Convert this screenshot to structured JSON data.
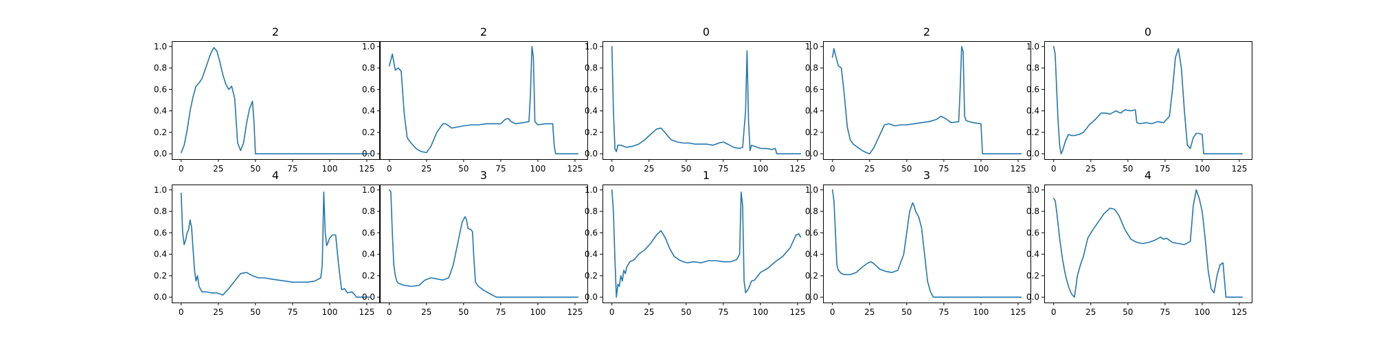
{
  "figure": {
    "background": "#ffffff",
    "line_color": "#1f77b4"
  },
  "chart_data": [
    {
      "type": "line",
      "title": "2",
      "xlim": [
        0,
        127
      ],
      "ylim": [
        0,
        1
      ],
      "xticks": [
        "0",
        "25",
        "50",
        "75",
        "100",
        "125"
      ],
      "yticks": [
        "0.0",
        "0.2",
        "0.4",
        "0.6",
        "0.8",
        "1.0"
      ],
      "x": [
        0,
        2,
        4,
        6,
        8,
        10,
        12,
        14,
        16,
        18,
        20,
        22,
        24,
        26,
        28,
        30,
        32,
        34,
        36,
        38,
        40,
        42,
        44,
        46,
        48,
        49,
        50,
        127
      ],
      "y": [
        0.01,
        0.08,
        0.22,
        0.4,
        0.53,
        0.63,
        0.66,
        0.7,
        0.78,
        0.86,
        0.94,
        0.99,
        0.96,
        0.86,
        0.74,
        0.65,
        0.6,
        0.63,
        0.52,
        0.1,
        0.03,
        0.1,
        0.28,
        0.42,
        0.49,
        0.3,
        0.0,
        0.0
      ]
    },
    {
      "type": "line",
      "title": "2",
      "xlim": [
        0,
        127
      ],
      "ylim": [
        0,
        1
      ],
      "xticks": [
        "0",
        "25",
        "50",
        "75",
        "100",
        "125"
      ],
      "yticks": [
        "0.0",
        "0.2",
        "0.4",
        "0.6",
        "0.8",
        "1.0"
      ],
      "x": [
        0,
        2,
        4,
        6,
        8,
        10,
        12,
        14,
        16,
        18,
        20,
        22,
        25,
        28,
        32,
        36,
        38,
        42,
        46,
        50,
        55,
        60,
        65,
        70,
        75,
        78,
        80,
        82,
        85,
        90,
        94,
        95,
        96,
        97,
        98,
        100,
        105,
        110,
        111,
        112,
        120,
        127
      ],
      "y": [
        0.82,
        0.93,
        0.78,
        0.8,
        0.77,
        0.38,
        0.15,
        0.11,
        0.08,
        0.05,
        0.03,
        0.02,
        0.01,
        0.07,
        0.2,
        0.28,
        0.28,
        0.24,
        0.25,
        0.26,
        0.27,
        0.27,
        0.28,
        0.28,
        0.28,
        0.32,
        0.33,
        0.3,
        0.28,
        0.29,
        0.3,
        0.55,
        1.0,
        0.9,
        0.3,
        0.27,
        0.28,
        0.28,
        0.08,
        0.0,
        0.0,
        0.0
      ]
    },
    {
      "type": "line",
      "title": "0",
      "xlim": [
        0,
        127
      ],
      "ylim": [
        0,
        1
      ],
      "xticks": [
        "0",
        "25",
        "50",
        "75",
        "100",
        "125"
      ],
      "yticks": [
        "0.0",
        "0.2",
        "0.4",
        "0.6",
        "0.8",
        "1.0"
      ],
      "x": [
        0,
        1,
        2,
        3,
        4,
        6,
        8,
        10,
        14,
        18,
        22,
        26,
        30,
        33,
        35,
        38,
        40,
        44,
        48,
        52,
        56,
        60,
        64,
        68,
        72,
        75,
        78,
        82,
        86,
        88,
        90,
        91,
        92,
        93,
        94,
        96,
        100,
        104,
        108,
        110,
        111,
        112,
        120,
        127
      ],
      "y": [
        1.0,
        0.4,
        0.05,
        0.02,
        0.08,
        0.08,
        0.07,
        0.06,
        0.07,
        0.09,
        0.13,
        0.18,
        0.23,
        0.24,
        0.21,
        0.16,
        0.13,
        0.11,
        0.1,
        0.1,
        0.09,
        0.09,
        0.09,
        0.08,
        0.1,
        0.11,
        0.09,
        0.06,
        0.05,
        0.06,
        0.4,
        0.96,
        0.3,
        0.03,
        0.08,
        0.07,
        0.05,
        0.05,
        0.04,
        0.05,
        0.0,
        0.0,
        0.0,
        0.0
      ]
    },
    {
      "type": "line",
      "title": "2",
      "xlim": [
        0,
        127
      ],
      "ylim": [
        0,
        1
      ],
      "xticks": [
        "0",
        "25",
        "50",
        "75",
        "100",
        "125"
      ],
      "yticks": [
        "0.0",
        "0.2",
        "0.4",
        "0.6",
        "0.8",
        "1.0"
      ],
      "x": [
        0,
        1,
        2,
        4,
        6,
        8,
        10,
        12,
        14,
        17,
        20,
        23,
        25,
        28,
        32,
        35,
        38,
        42,
        46,
        50,
        55,
        60,
        65,
        70,
        73,
        76,
        80,
        85,
        86,
        87,
        88,
        89,
        90,
        92,
        95,
        100,
        101,
        110,
        120,
        127
      ],
      "y": [
        0.9,
        0.98,
        0.92,
        0.82,
        0.8,
        0.55,
        0.25,
        0.13,
        0.09,
        0.06,
        0.03,
        0.01,
        0.0,
        0.06,
        0.18,
        0.27,
        0.28,
        0.26,
        0.27,
        0.27,
        0.28,
        0.29,
        0.3,
        0.32,
        0.35,
        0.33,
        0.29,
        0.3,
        0.6,
        1.0,
        0.95,
        0.35,
        0.31,
        0.3,
        0.29,
        0.28,
        0.0,
        0.0,
        0.0,
        0.0
      ]
    },
    {
      "type": "line",
      "title": "0",
      "xlim": [
        0,
        127
      ],
      "ylim": [
        0,
        1
      ],
      "xticks": [
        "0",
        "25",
        "50",
        "75",
        "100",
        "125"
      ],
      "yticks": [
        "0.0",
        "0.2",
        "0.4",
        "0.6",
        "0.8",
        "1.0"
      ],
      "x": [
        0,
        1,
        2,
        3,
        4,
        5,
        6,
        8,
        10,
        12,
        14,
        17,
        20,
        24,
        28,
        32,
        35,
        38,
        42,
        45,
        48,
        52,
        55,
        56,
        58,
        62,
        66,
        70,
        74,
        78,
        80,
        82,
        84,
        86,
        88,
        90,
        92,
        94,
        96,
        98,
        100,
        101,
        110,
        120,
        127
      ],
      "y": [
        1.0,
        0.93,
        0.6,
        0.3,
        0.08,
        0.0,
        0.03,
        0.12,
        0.18,
        0.17,
        0.17,
        0.18,
        0.2,
        0.27,
        0.32,
        0.38,
        0.38,
        0.37,
        0.4,
        0.38,
        0.41,
        0.4,
        0.41,
        0.29,
        0.28,
        0.29,
        0.28,
        0.3,
        0.29,
        0.35,
        0.6,
        0.9,
        0.98,
        0.8,
        0.4,
        0.08,
        0.05,
        0.15,
        0.19,
        0.19,
        0.18,
        0.0,
        0.0,
        0.0,
        0.0
      ]
    },
    {
      "type": "line",
      "title": "4",
      "xlim": [
        0,
        127
      ],
      "ylim": [
        0,
        1
      ],
      "xticks": [
        "0",
        "25",
        "50",
        "75",
        "100",
        "125"
      ],
      "yticks": [
        "0.0",
        "0.2",
        "0.4",
        "0.6",
        "0.8",
        "1.0"
      ],
      "x": [
        0,
        1,
        2,
        3,
        4,
        5,
        6,
        7,
        8,
        9,
        10,
        11,
        12,
        14,
        17,
        20,
        24,
        28,
        32,
        36,
        40,
        44,
        48,
        52,
        56,
        60,
        65,
        70,
        75,
        80,
        85,
        90,
        94,
        95,
        96,
        97,
        98,
        100,
        102,
        104,
        106,
        108,
        110,
        112,
        115,
        117,
        118,
        127
      ],
      "y": [
        0.97,
        0.6,
        0.49,
        0.53,
        0.6,
        0.63,
        0.72,
        0.65,
        0.45,
        0.25,
        0.15,
        0.2,
        0.1,
        0.05,
        0.05,
        0.04,
        0.04,
        0.02,
        0.08,
        0.15,
        0.22,
        0.23,
        0.2,
        0.18,
        0.18,
        0.17,
        0.16,
        0.15,
        0.14,
        0.14,
        0.14,
        0.15,
        0.18,
        0.3,
        0.98,
        0.6,
        0.48,
        0.55,
        0.58,
        0.58,
        0.3,
        0.07,
        0.08,
        0.04,
        0.05,
        0.02,
        0.0,
        0.0
      ]
    },
    {
      "type": "line",
      "title": "3",
      "xlim": [
        0,
        127
      ],
      "ylim": [
        0,
        1
      ],
      "xticks": [
        "0",
        "25",
        "50",
        "75",
        "100",
        "125"
      ],
      "yticks": [
        "0.0",
        "0.2",
        "0.4",
        "0.6",
        "0.8",
        "1.0"
      ],
      "x": [
        0,
        1,
        2,
        3,
        4,
        5,
        6,
        8,
        10,
        15,
        20,
        24,
        28,
        32,
        36,
        40,
        43,
        46,
        49,
        51,
        52,
        53,
        55,
        56,
        57,
        58,
        60,
        64,
        68,
        72,
        127
      ],
      "y": [
        1.0,
        0.98,
        0.6,
        0.3,
        0.2,
        0.15,
        0.13,
        0.12,
        0.11,
        0.1,
        0.11,
        0.16,
        0.18,
        0.17,
        0.16,
        0.18,
        0.3,
        0.5,
        0.7,
        0.75,
        0.72,
        0.64,
        0.63,
        0.61,
        0.35,
        0.14,
        0.1,
        0.06,
        0.03,
        0.0,
        0.0
      ]
    },
    {
      "type": "line",
      "title": "1",
      "xlim": [
        0,
        127
      ],
      "ylim": [
        0,
        1
      ],
      "xticks": [
        "0",
        "25",
        "50",
        "75",
        "100",
        "125"
      ],
      "yticks": [
        "0.0",
        "0.2",
        "0.4",
        "0.6",
        "0.8",
        "1.0"
      ],
      "x": [
        0,
        1,
        2,
        3,
        4,
        5,
        6,
        7,
        8,
        9,
        10,
        12,
        15,
        18,
        22,
        26,
        30,
        33,
        36,
        39,
        42,
        45,
        48,
        51,
        55,
        60,
        65,
        70,
        75,
        80,
        84,
        86,
        87,
        88,
        89,
        90,
        92,
        94,
        96,
        100,
        105,
        110,
        115,
        120,
        124,
        126,
        127
      ],
      "y": [
        1.0,
        0.8,
        0.35,
        0.0,
        0.12,
        0.1,
        0.2,
        0.15,
        0.25,
        0.22,
        0.28,
        0.33,
        0.35,
        0.4,
        0.44,
        0.5,
        0.58,
        0.62,
        0.55,
        0.45,
        0.38,
        0.35,
        0.33,
        0.32,
        0.33,
        0.32,
        0.34,
        0.34,
        0.33,
        0.33,
        0.35,
        0.4,
        0.98,
        0.85,
        0.15,
        0.04,
        0.08,
        0.15,
        0.16,
        0.23,
        0.27,
        0.33,
        0.38,
        0.46,
        0.58,
        0.59,
        0.56
      ]
    },
    {
      "type": "line",
      "title": "3",
      "xlim": [
        0,
        127
      ],
      "ylim": [
        0,
        1
      ],
      "xticks": [
        "0",
        "25",
        "50",
        "75",
        "100",
        "125"
      ],
      "yticks": [
        "0.0",
        "0.2",
        "0.4",
        "0.6",
        "0.8",
        "1.0"
      ],
      "x": [
        0,
        1,
        2,
        3,
        4,
        6,
        8,
        12,
        16,
        20,
        24,
        26,
        28,
        32,
        36,
        40,
        44,
        48,
        50,
        52,
        54,
        55,
        56,
        58,
        60,
        62,
        64,
        66,
        68,
        70,
        127
      ],
      "y": [
        1.0,
        0.9,
        0.6,
        0.3,
        0.25,
        0.22,
        0.21,
        0.21,
        0.23,
        0.28,
        0.32,
        0.33,
        0.31,
        0.26,
        0.24,
        0.23,
        0.25,
        0.4,
        0.6,
        0.8,
        0.88,
        0.85,
        0.8,
        0.75,
        0.65,
        0.4,
        0.15,
        0.05,
        0.0,
        0.0,
        0.0
      ]
    },
    {
      "type": "line",
      "title": "4",
      "xlim": [
        0,
        127
      ],
      "ylim": [
        0,
        1
      ],
      "xticks": [
        "0",
        "25",
        "50",
        "75",
        "100",
        "125"
      ],
      "yticks": [
        "0.0",
        "0.2",
        "0.4",
        "0.6",
        "0.8",
        "1.0"
      ],
      "x": [
        0,
        1,
        2,
        4,
        6,
        8,
        10,
        12,
        14,
        16,
        18,
        20,
        23,
        26,
        30,
        34,
        38,
        41,
        44,
        48,
        52,
        56,
        60,
        64,
        68,
        72,
        74,
        76,
        80,
        84,
        88,
        92,
        94,
        96,
        98,
        100,
        102,
        104,
        106,
        108,
        110,
        112,
        114,
        116,
        118,
        127
      ],
      "y": [
        0.92,
        0.9,
        0.8,
        0.55,
        0.35,
        0.2,
        0.1,
        0.03,
        0.0,
        0.2,
        0.3,
        0.38,
        0.55,
        0.62,
        0.7,
        0.78,
        0.83,
        0.82,
        0.76,
        0.63,
        0.54,
        0.51,
        0.5,
        0.51,
        0.53,
        0.56,
        0.54,
        0.55,
        0.51,
        0.5,
        0.49,
        0.52,
        0.85,
        1.0,
        0.92,
        0.8,
        0.55,
        0.25,
        0.08,
        0.04,
        0.2,
        0.3,
        0.32,
        0.0,
        0.0,
        0.0
      ]
    }
  ]
}
